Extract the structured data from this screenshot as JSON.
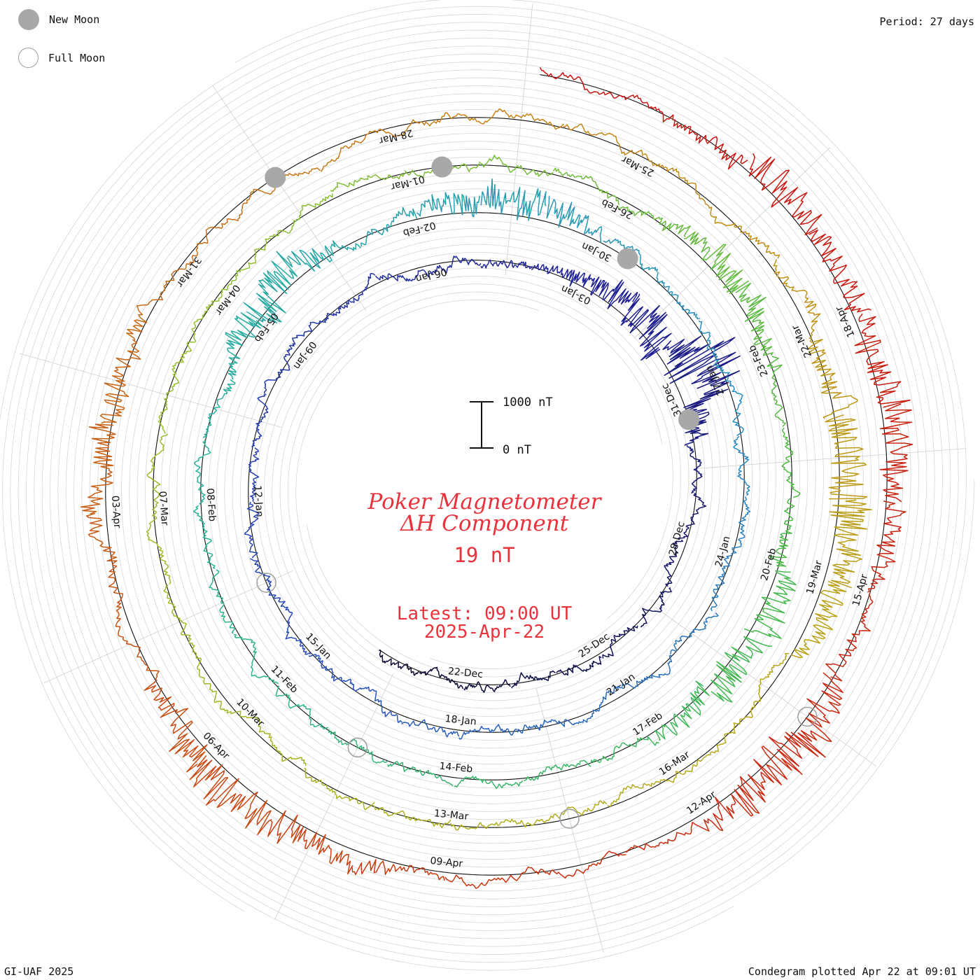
{
  "legend": {
    "new_moon_label": "New Moon",
    "full_moon_label": "Full Moon",
    "new_moon_color": "#a8a8a8",
    "full_moon_color": "#a0a0a0"
  },
  "period_label": "Period: 27 days",
  "footer": {
    "left": "GI-UAF 2025",
    "right": "Condegram plotted Apr 22 at 09:01 UT"
  },
  "center": {
    "title_line1": "Poker Magnetometer",
    "title_line2": "ΔH Component",
    "value": "19 nT",
    "latest_line1": "Latest: 09:00 UT",
    "latest_line2": "2025-Apr-22",
    "accent_color": "#e8323c"
  },
  "scale_bar": {
    "top_label": "1000 nT",
    "bottom_label": "0 nT"
  },
  "chart_data": {
    "type": "line",
    "subtype": "spiral condegram",
    "period_days": 27,
    "date_labels": [
      "22-Dec",
      "25-Dec",
      "28-Dec",
      "31-Dec",
      "03-Jan",
      "06-Jan",
      "09-Jan",
      "12-Jan",
      "15-Jan",
      "18-Jan",
      "21-Jan",
      "24-Jan",
      "27-Jan",
      "30-Jan",
      "02-Feb",
      "05-Feb",
      "08-Feb",
      "11-Feb",
      "14-Feb",
      "17-Feb",
      "20-Feb",
      "23-Feb",
      "26-Feb",
      "01-Mar",
      "04-Mar",
      "07-Mar",
      "10-Mar",
      "13-Mar",
      "16-Mar",
      "19-Mar",
      "22-Mar",
      "25-Mar",
      "28-Mar",
      "31-Mar",
      "03-Apr",
      "06-Apr",
      "09-Apr",
      "12-Apr",
      "15-Apr",
      "18-Apr"
    ],
    "series_colors": [
      "#0a0a30",
      "#1e1e90",
      "#2a4ab8",
      "#2a8cc0",
      "#28b49a",
      "#48b848",
      "#98c030",
      "#b8a818",
      "#c87818",
      "#c83010",
      "#c81010"
    ],
    "turns": [
      {
        "start": "2024-Dec-20",
        "end": "2025-Jan-16",
        "color": "#0a0a30"
      },
      {
        "start": "2025-Jan-16",
        "end": "2025-Feb-12",
        "color": "#2a4ab8"
      },
      {
        "start": "2025-Feb-12",
        "end": "2025-Mar-11",
        "color": "#28b49a"
      },
      {
        "start": "2025-Mar-11",
        "end": "2025-Apr-07",
        "color": "#98c030"
      },
      {
        "start": "2025-Apr-07",
        "end": "2025-Apr-22",
        "color": "#c83010"
      }
    ],
    "new_moon_dates": [
      "2024-Dec-30",
      "2025-Jan-29",
      "2025-Feb-28",
      "2025-Mar-29"
    ],
    "full_moon_dates": [
      "2025-Jan-13",
      "2025-Feb-12",
      "2025-Mar-14",
      "2025-Apr-13"
    ],
    "units": "nT",
    "latest_value_nT": 19
  }
}
